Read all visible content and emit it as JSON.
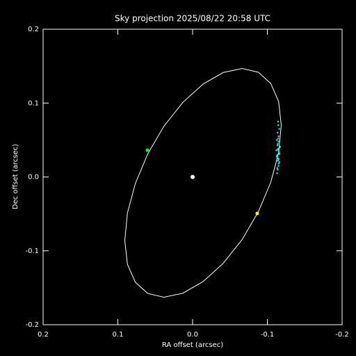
{
  "chart_data": {
    "type": "scatter",
    "title": "Sky projection 2025/08/22 20:58 UTC",
    "xlabel": "RA offset (arcsec)",
    "ylabel": "Dec offset (arcsec)",
    "xlim": [
      0.2,
      -0.2
    ],
    "ylim": [
      -0.2,
      0.2
    ],
    "xticks": [
      0.2,
      0.1,
      {
        "value": 0,
        "label": "0.0"
      },
      -0.1,
      -0.2
    ],
    "yticks": [
      -0.2,
      -0.1,
      {
        "value": 0,
        "label": "0.0"
      },
      0.1,
      0.2
    ],
    "series": [
      {
        "type": "line",
        "color": "#ffffff",
        "x": [
          -0.1186,
          -0.1151,
          -0.1046,
          -0.0879,
          -0.0663,
          -0.041,
          -0.014,
          0.0131,
          0.0384,
          0.06,
          0.0766,
          0.0872,
          0.0907,
          0.0872,
          0.0766,
          0.06,
          0.0384,
          0.0131,
          -0.014,
          -0.041,
          -0.0663,
          -0.0879,
          -0.1046,
          -0.1151,
          -0.1186
        ],
        "y": [
          0.0701,
          0.1021,
          0.1265,
          0.1418,
          0.1468,
          0.1414,
          0.1257,
          0.1009,
          0.0687,
          0.0312,
          -0.0088,
          -0.0488,
          -0.0861,
          -0.1181,
          -0.1425,
          -0.1577,
          -0.1628,
          -0.1574,
          -0.1416,
          -0.1169,
          -0.0847,
          -0.0472,
          -0.0072,
          0.0329,
          0.0701
        ]
      },
      {
        "type": "scatter",
        "color": "#00ffff",
        "size": 1.2,
        "x": [
          -0.113,
          -0.114,
          -0.115,
          -0.116,
          -0.1145,
          -0.1135,
          -0.1155,
          -0.1165,
          -0.1142,
          -0.1128,
          -0.115,
          -0.1138,
          -0.116,
          -0.1147,
          -0.1133,
          -0.1152,
          -0.1141,
          -0.1125,
          -0.1158,
          -0.1144,
          -0.1136,
          -0.1149,
          -0.1131,
          -0.1162,
          -0.1139,
          -0.1146,
          -0.1153,
          -0.112,
          -0.117,
          -0.1143
        ],
        "y": [
          0.005,
          0.01,
          0.015,
          0.02,
          0.025,
          0.03,
          0.035,
          0.04,
          0.045,
          0.05,
          0.055,
          0.06,
          0.065,
          0.07,
          0.012,
          0.018,
          0.022,
          0.028,
          0.033,
          0.038,
          0.043,
          0.048,
          0.027,
          0.031,
          0.037,
          0.052,
          0.024,
          0.036,
          0.041,
          0.075
        ]
      },
      {
        "type": "scatter",
        "color": "#00ff00",
        "size": 2.5,
        "x": [
          0.0605
        ],
        "y": [
          0.0362
        ]
      },
      {
        "type": "scatter",
        "color": "#ffff00",
        "size": 2.5,
        "x": [
          -0.0865
        ],
        "y": [
          -0.0494
        ]
      },
      {
        "type": "scatter",
        "color": "#ffffff",
        "size": 3,
        "x": [
          0
        ],
        "y": [
          0
        ]
      }
    ]
  }
}
